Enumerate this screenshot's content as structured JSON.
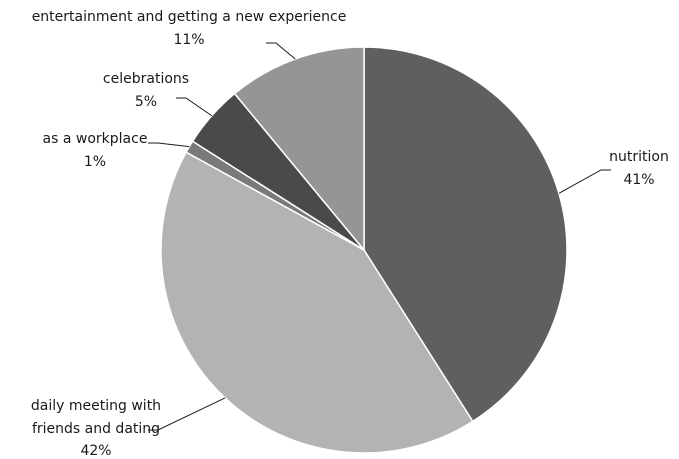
{
  "chart_data": {
    "type": "pie",
    "title": "",
    "slices": [
      {
        "label": "nutrition",
        "value": 41,
        "value_label": "41%",
        "color": "#5f5f5f"
      },
      {
        "label_lines": [
          "daily meeting with",
          "friends and dating"
        ],
        "value": 42,
        "value_label": "42%",
        "color": "#b3b3b3"
      },
      {
        "label": "as a workplace",
        "value": 1,
        "value_label": "1%",
        "color": "#7a7a7a"
      },
      {
        "label": "celebrations",
        "value": 5,
        "value_label": "5%",
        "color": "#4a4a4a"
      },
      {
        "label": "entertainment and getting a new experience",
        "value": 11,
        "value_label": "11%",
        "color": "#959595"
      }
    ]
  }
}
